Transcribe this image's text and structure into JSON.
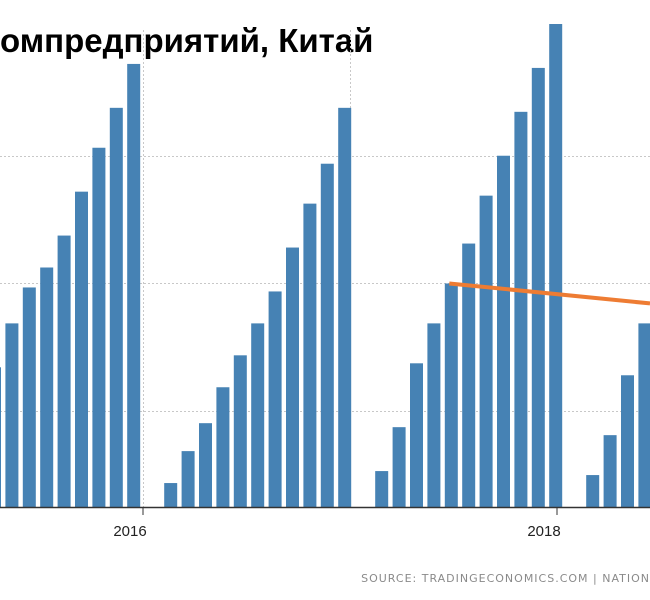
{
  "title": "омпредприятий, Китай",
  "source": "SOURCE:  TRADINGECONOMICS.COM  |  NATION",
  "colors": {
    "bar": "#4682b4",
    "trend": "#ee7c33",
    "grid": "#c8c8c8",
    "axis": "#333333",
    "text": "#222222"
  },
  "chart_data": {
    "type": "bar",
    "title": "омпредприятий, Китай",
    "xlabel": "",
    "ylabel": "",
    "x_ticks": [
      "2016",
      "2018"
    ],
    "ylim": [
      0,
      12
    ],
    "grid": true,
    "values": [
      3.5,
      4.6,
      5.5,
      6.0,
      6.8,
      7.9,
      9.0,
      10.0,
      11.1,
      0.6,
      1.4,
      2.1,
      3.0,
      3.8,
      4.6,
      5.4,
      6.5,
      7.6,
      8.6,
      10.0,
      0.9,
      2.0,
      3.6,
      4.6,
      5.6,
      6.6,
      7.8,
      8.8,
      9.9,
      11.0,
      12.1,
      0.8,
      1.8,
      3.3,
      4.6,
      5.4
    ],
    "trend": {
      "series": "trend",
      "from_index": 24,
      "to_index": 35,
      "values": [
        5.6,
        5.1
      ]
    }
  }
}
